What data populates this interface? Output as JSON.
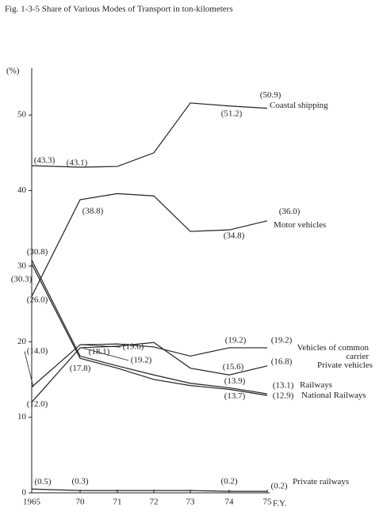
{
  "chart_data": {
    "type": "line",
    "title": "Fig. 1-3-5  Share of Various Modes of Transport in ton-kilometers",
    "y_label": "(%)",
    "x_label": "F.Y.",
    "categories": [
      "1965",
      "70",
      "71",
      "72",
      "73",
      "74",
      "75"
    ],
    "ylim": [
      0,
      56
    ],
    "yticks": [
      0,
      10,
      20,
      30,
      40,
      50
    ],
    "series": [
      {
        "name": "Coastal shipping",
        "color": "#222222",
        "values": [
          43.3,
          43.1,
          43.2,
          45.0,
          51.6,
          51.2,
          50.9
        ],
        "value_labels": [
          "(43.3)",
          "(43.1)",
          null,
          null,
          null,
          "(51.2)",
          "(50.9)"
        ]
      },
      {
        "name": "Motor vehicles",
        "color": "#222222",
        "values": [
          26.0,
          38.8,
          39.6,
          39.3,
          34.6,
          34.8,
          36.0
        ],
        "value_labels": [
          "(26.0)",
          "(38.8)",
          null,
          null,
          null,
          "(34.8)",
          "(36.0)"
        ]
      },
      {
        "name": "Railways",
        "color": "#222222",
        "values": [
          30.8,
          18.1,
          16.8,
          15.6,
          14.5,
          13.9,
          13.1
        ],
        "value_labels": [
          "(30.8)",
          "(18.1)",
          null,
          null,
          null,
          "(13.9)",
          "(13.1)"
        ]
      },
      {
        "name": "National Railways",
        "color": "#222222",
        "values": [
          30.3,
          17.8,
          16.5,
          15.0,
          14.2,
          13.7,
          12.9
        ],
        "value_labels": [
          "(30.3)",
          "(17.8)",
          null,
          null,
          null,
          "(13.7)",
          "(12.9)"
        ]
      },
      {
        "name": "Vehicles of common carrier",
        "color": "#222222",
        "values": [
          14.0,
          19.6,
          19.7,
          19.3,
          18.1,
          19.2,
          19.2
        ],
        "value_labels": [
          "(14.0)",
          "(19.6)",
          null,
          null,
          null,
          "(19.2)",
          "(19.2)"
        ]
      },
      {
        "name": "Private vehicles",
        "color": "#222222",
        "values": [
          12.0,
          19.2,
          19.4,
          19.9,
          16.5,
          15.6,
          16.8
        ],
        "value_labels": [
          "(12.0)",
          "(19.2)",
          null,
          null,
          null,
          "(15.6)",
          "(16.8)"
        ]
      },
      {
        "name": "Private railways",
        "color": "#222222",
        "values": [
          0.5,
          0.3,
          0.3,
          0.3,
          0.3,
          0.2,
          0.2
        ],
        "value_labels": [
          "(0.5)",
          "(0.3)",
          null,
          null,
          null,
          "(0.2)",
          "(0.2)"
        ]
      }
    ]
  }
}
